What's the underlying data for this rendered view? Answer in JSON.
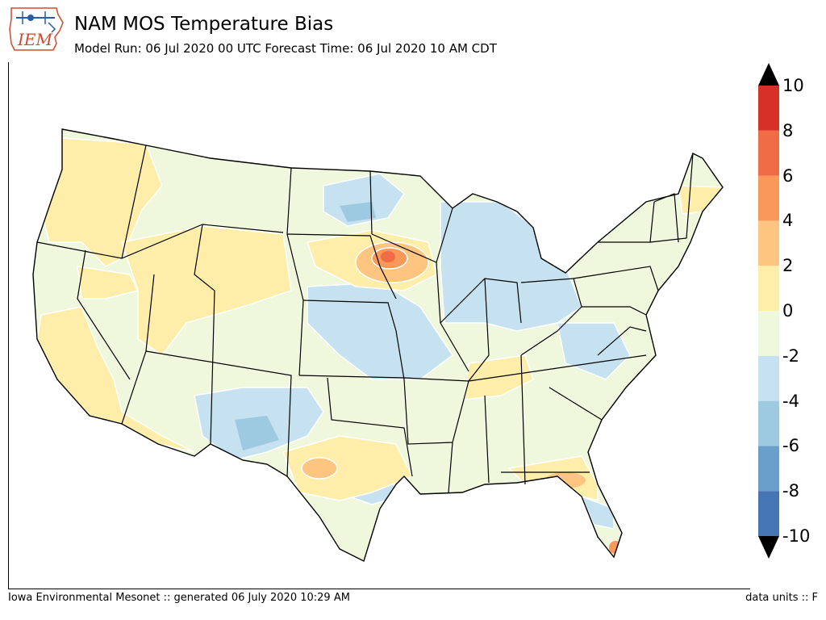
{
  "header": {
    "title": "NAM MOS Temperature Bias",
    "subtitle": "Model Run: 06 Jul 2020 00 UTC Forecast Time: 06 Jul 2020 10 AM CDT",
    "logo_text": "IEM"
  },
  "footer": {
    "left": "Iowa Environmental Mesonet :: generated 06 July 2020 10:29 AM",
    "right": "data units :: F"
  },
  "legend": {
    "min": -10,
    "max": 10,
    "tick_labels": [
      "10",
      "8",
      "6",
      "4",
      "2",
      "0",
      "-2",
      "-4",
      "-6",
      "-8",
      "-10"
    ],
    "colors": [
      "#4575b4",
      "#6a9fcc",
      "#9ecae1",
      "#c6e2f0",
      "#eff8dc",
      "#ffeeaa",
      "#fdc57f",
      "#f99858",
      "#ef6c47",
      "#d73027"
    ],
    "bins": [
      [
        -10,
        -8
      ],
      [
        -8,
        -6
      ],
      [
        -6,
        -4
      ],
      [
        -4,
        -2
      ],
      [
        -2,
        0
      ],
      [
        0,
        2
      ],
      [
        2,
        4
      ],
      [
        4,
        6
      ],
      [
        6,
        8
      ],
      [
        8,
        10
      ]
    ],
    "extend": "both"
  },
  "map": {
    "region": "Contiguous United States",
    "field": "temperature bias",
    "background_color": "#eff8dc",
    "contour_line_color": "#ffffff",
    "border_color": "#000000"
  }
}
